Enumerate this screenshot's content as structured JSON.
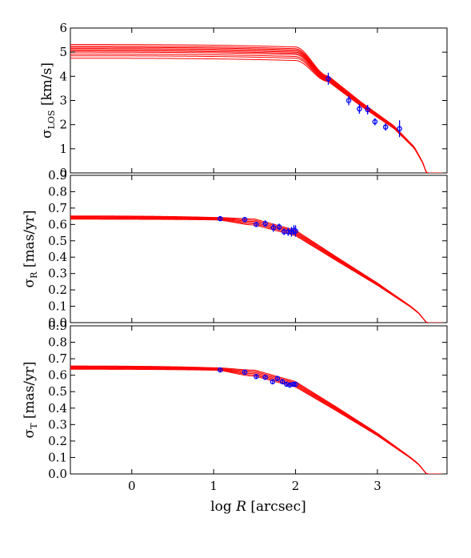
{
  "chart_data": [
    {
      "type": "line",
      "panel": "top",
      "ylabel_main": "σ",
      "ylabel_sub": "LOS",
      "ylabel_unit": " [km/s]",
      "xlim": [
        -0.75,
        3.85
      ],
      "ylim": [
        0,
        6
      ],
      "yticks": [
        0,
        1,
        2,
        3,
        4,
        5,
        6
      ],
      "ytick_labels": [
        "0",
        "1",
        "2",
        "3",
        "4",
        "5",
        "6"
      ],
      "grid": false,
      "series": [
        {
          "kind": "model-band",
          "color": "#ff0000",
          "plateaus": [
            4.75,
            4.85,
            4.92,
            5.0,
            5.05,
            5.1,
            5.15,
            5.2,
            5.25,
            5.32
          ],
          "anchor": [
            [
              2.0,
              null
            ],
            [
              2.4,
              3.9
            ],
            [
              2.8,
              2.85
            ],
            [
              3.2,
              1.9
            ],
            [
              3.45,
              1.05
            ],
            [
              3.55,
              0.45
            ],
            [
              3.6,
              0.0
            ]
          ]
        },
        {
          "kind": "data",
          "color": "#0000ff",
          "x": [
            2.4,
            2.65,
            2.78,
            2.88,
            2.97,
            3.1,
            3.27
          ],
          "y": [
            3.9,
            3.0,
            2.65,
            2.62,
            2.12,
            1.9,
            1.83
          ],
          "yerr": [
            0.25,
            0.2,
            0.2,
            0.2,
            0.15,
            0.15,
            0.35
          ]
        }
      ]
    },
    {
      "type": "line",
      "panel": "middle",
      "ylabel_main": "σ",
      "ylabel_sub": "R",
      "ylabel_unit": " [mas/yr]",
      "xlim": [
        -0.75,
        3.85
      ],
      "ylim": [
        0,
        0.9
      ],
      "yticks": [
        0,
        0.1,
        0.2,
        0.3,
        0.4,
        0.5,
        0.6,
        0.7,
        0.8,
        0.9
      ],
      "ytick_labels": [
        "0.0",
        "0.1",
        "0.2",
        "0.3",
        "0.4",
        "0.5",
        "0.6",
        "0.7",
        "0.8",
        "0.9"
      ],
      "grid": false,
      "series": [
        {
          "kind": "model-band",
          "color": "#ff0000",
          "plateaus": [
            0.632,
            0.636,
            0.64,
            0.644,
            0.648,
            0.652
          ],
          "anchor": [
            [
              1.0,
              null
            ],
            [
              1.5,
              0.615
            ],
            [
              2.0,
              0.548
            ],
            [
              2.5,
              0.39
            ],
            [
              3.0,
              0.235
            ],
            [
              3.4,
              0.1
            ],
            [
              3.5,
              0.06
            ],
            [
              3.6,
              0.0
            ]
          ]
        },
        {
          "kind": "data",
          "color": "#0000ff",
          "x": [
            1.08,
            1.38,
            1.52,
            1.63,
            1.73,
            1.8,
            1.86,
            1.91,
            1.95,
            1.98,
            2.0
          ],
          "y": [
            0.635,
            0.63,
            0.6,
            0.605,
            0.58,
            0.585,
            0.555,
            0.555,
            0.555,
            0.565,
            0.56
          ],
          "yerr": [
            0.012,
            0.015,
            0.015,
            0.02,
            0.025,
            0.02,
            0.02,
            0.025,
            0.03,
            0.03,
            0.035
          ]
        }
      ]
    },
    {
      "type": "line",
      "panel": "bottom",
      "ylabel_main": "σ",
      "ylabel_sub": "T",
      "ylabel_unit": " [mas/yr]",
      "xlabel_main": "log ",
      "xlabel_var": "R",
      "xlabel_unit": " [arcsec]",
      "xlim": [
        -0.75,
        3.85
      ],
      "ylim": [
        0,
        0.9
      ],
      "xticks": [
        0,
        1,
        2,
        3
      ],
      "xtick_labels": [
        "0",
        "1",
        "2",
        "3"
      ],
      "yticks": [
        0,
        0.1,
        0.2,
        0.3,
        0.4,
        0.5,
        0.6,
        0.7,
        0.8,
        0.9
      ],
      "ytick_labels": [
        "0.0",
        "0.1",
        "0.2",
        "0.3",
        "0.4",
        "0.5",
        "0.6",
        "0.7",
        "0.8",
        "0.9"
      ],
      "grid": false,
      "series": [
        {
          "kind": "model-band",
          "color": "#ff0000",
          "plateaus": [
            0.636,
            0.64,
            0.644,
            0.648,
            0.652,
            0.656
          ],
          "anchor": [
            [
              1.0,
              null
            ],
            [
              1.5,
              0.613
            ],
            [
              2.0,
              0.545
            ],
            [
              2.5,
              0.395
            ],
            [
              3.0,
              0.24
            ],
            [
              3.4,
              0.1
            ],
            [
              3.5,
              0.06
            ],
            [
              3.6,
              0.0
            ]
          ]
        },
        {
          "kind": "data",
          "color": "#0000ff",
          "x": [
            1.08,
            1.38,
            1.52,
            1.63,
            1.72,
            1.78,
            1.84,
            1.89,
            1.93,
            1.97,
            2.0
          ],
          "y": [
            0.632,
            0.618,
            0.592,
            0.587,
            0.56,
            0.58,
            0.56,
            0.545,
            0.54,
            0.545,
            0.545
          ],
          "yerr": [
            0.01,
            0.012,
            0.012,
            0.015,
            0.015,
            0.015,
            0.015,
            0.015,
            0.015,
            0.015,
            0.015
          ]
        }
      ]
    }
  ]
}
